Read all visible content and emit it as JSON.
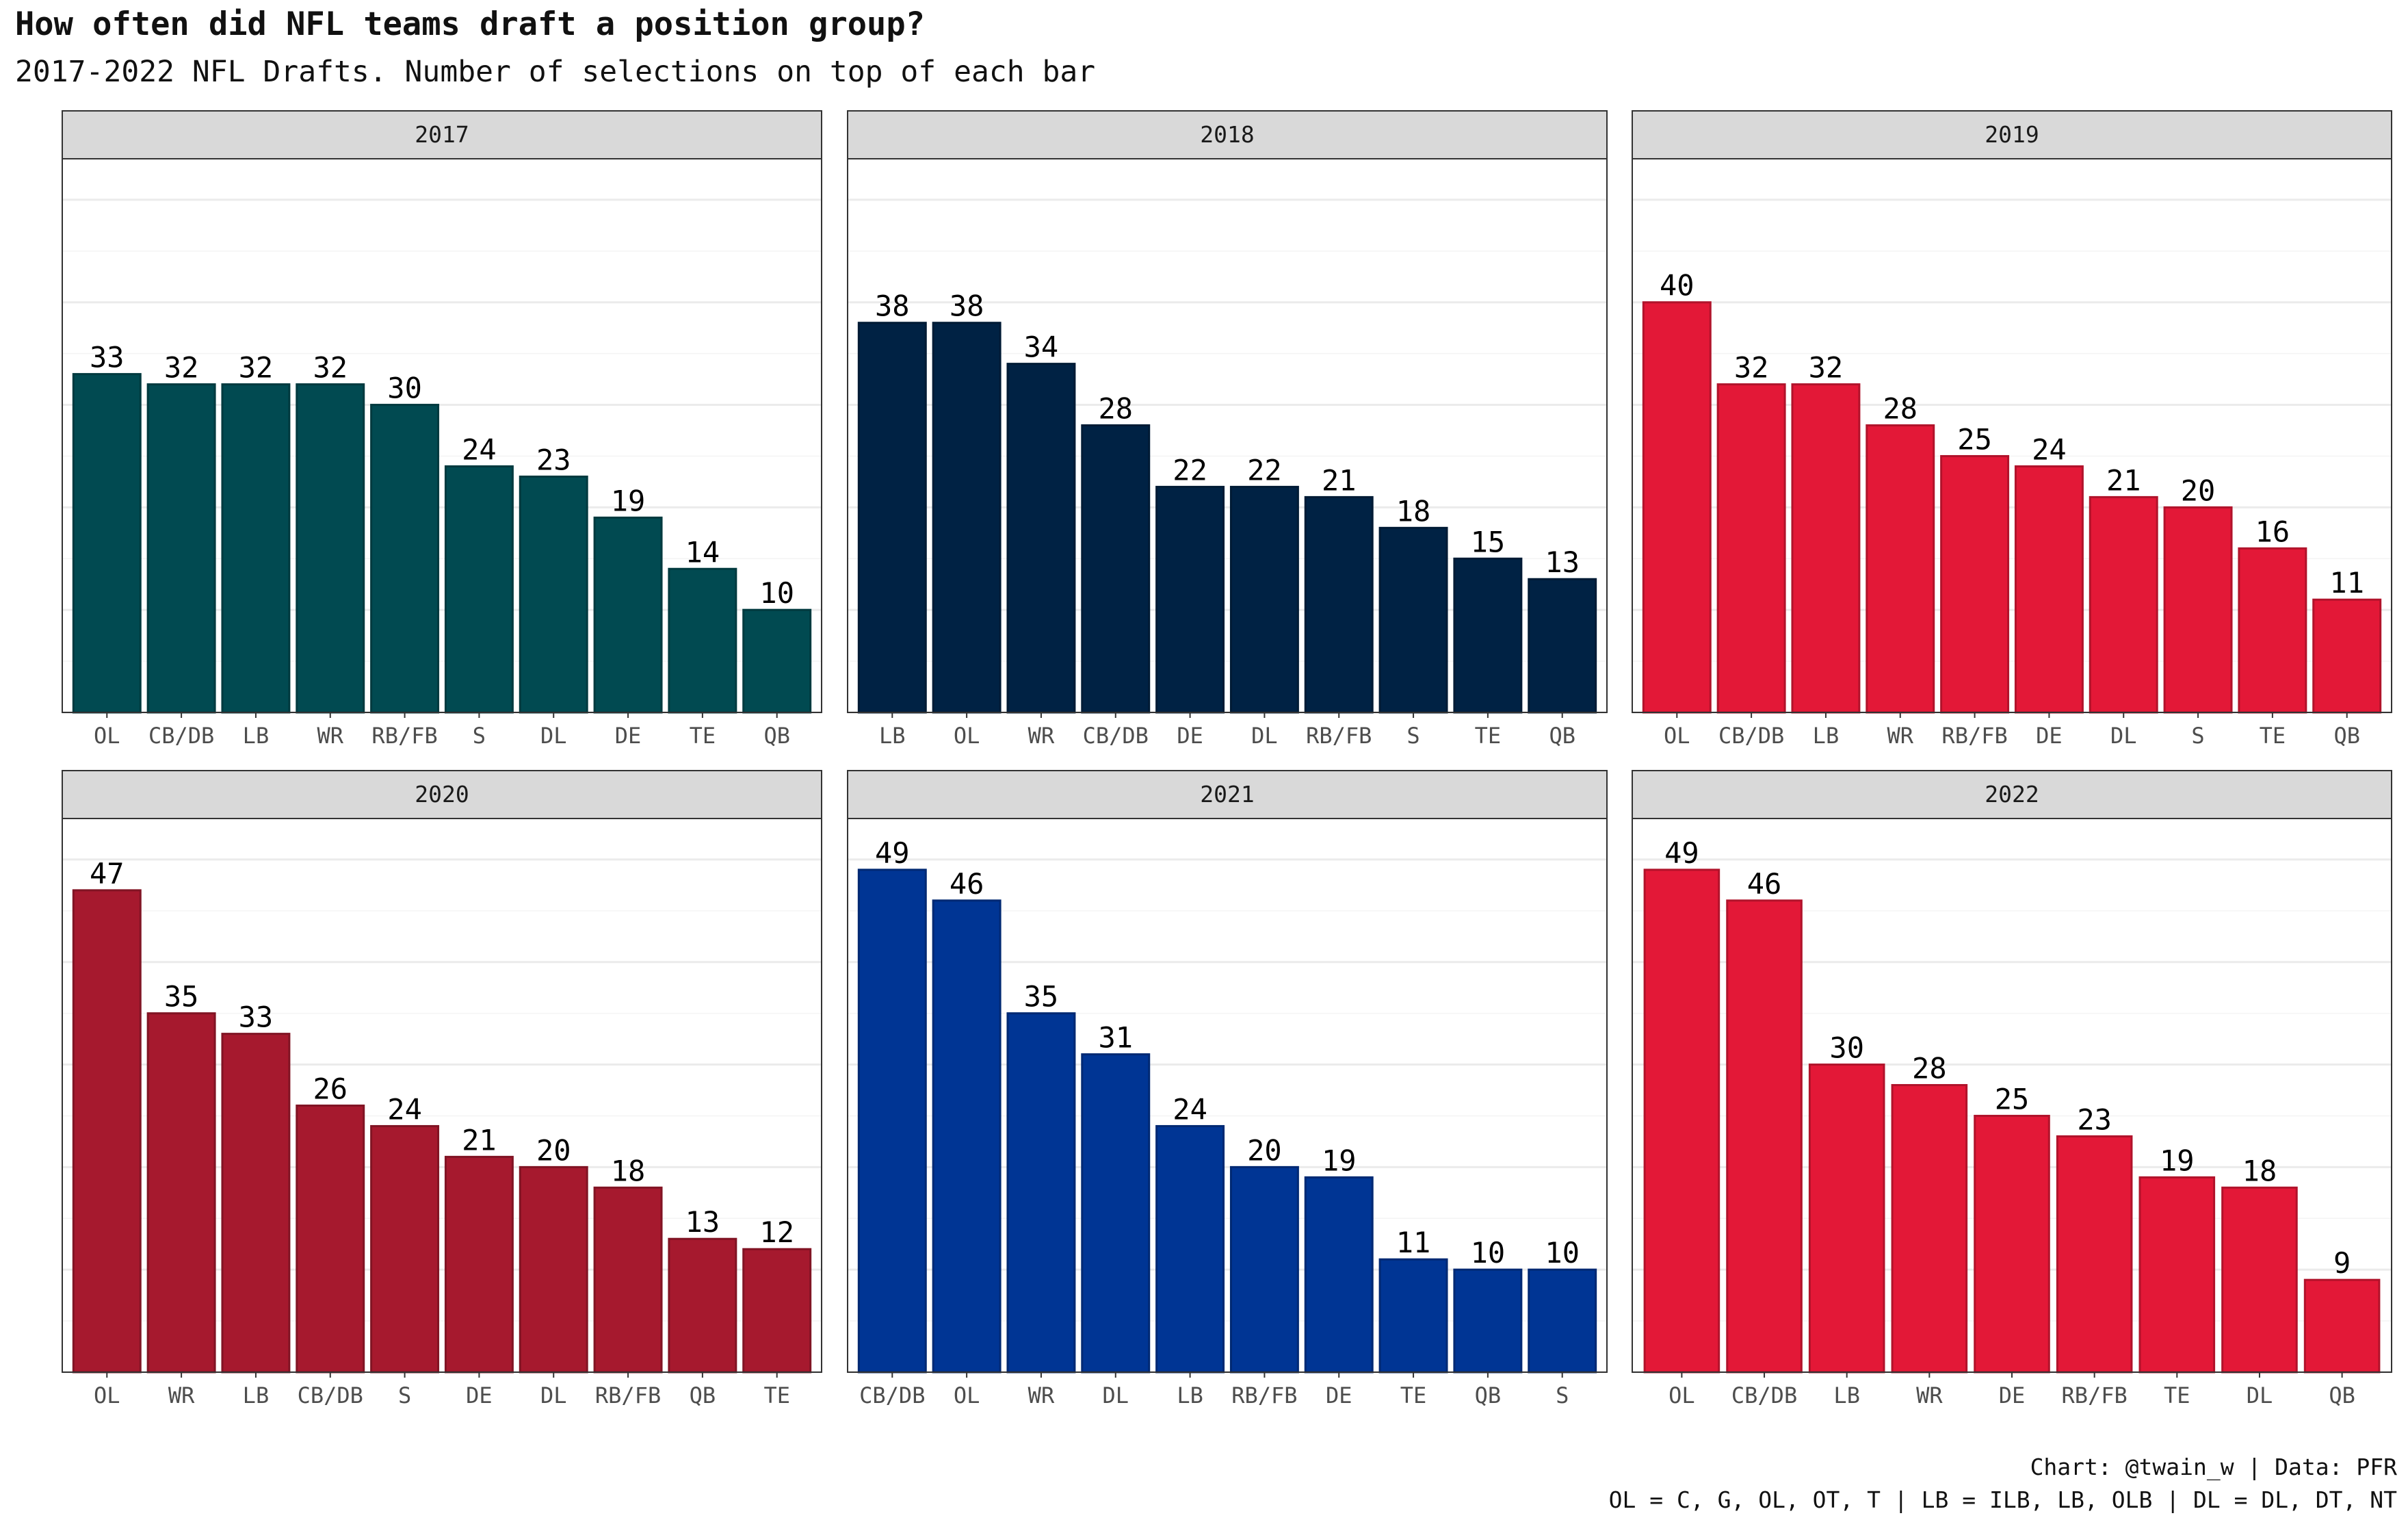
{
  "title": "How often did NFL teams draft a position group?",
  "subtitle": "2017-2022 NFL Drafts. Number of selections on top of each bar",
  "caption": {
    "line1": "Chart: @twain_w | Data: PFR",
    "line2": "OL = C, G, OL, OT, T | LB = ILB, LB, OLB | DL = DL, DT, NT"
  },
  "chart_data": [
    {
      "type": "bar",
      "facet_label": "2017",
      "color": "#014A51",
      "categories": [
        "OL",
        "CB/DB",
        "LB",
        "WR",
        "RB/FB",
        "S",
        "DL",
        "DE",
        "TE",
        "QB"
      ],
      "values": [
        33,
        32,
        32,
        32,
        30,
        24,
        23,
        19,
        14,
        10
      ],
      "ylim": [
        0,
        54
      ],
      "data_labels": true,
      "grid": true
    },
    {
      "type": "bar",
      "facet_label": "2018",
      "color": "#002244",
      "categories": [
        "LB",
        "OL",
        "WR",
        "CB/DB",
        "DE",
        "DL",
        "RB/FB",
        "S",
        "TE",
        "QB"
      ],
      "values": [
        38,
        38,
        34,
        28,
        22,
        22,
        21,
        18,
        15,
        13
      ],
      "ylim": [
        0,
        54
      ],
      "data_labels": true,
      "grid": true
    },
    {
      "type": "bar",
      "facet_label": "2019",
      "color": "#E31837",
      "categories": [
        "OL",
        "CB/DB",
        "LB",
        "WR",
        "RB/FB",
        "DE",
        "DL",
        "S",
        "TE",
        "QB"
      ],
      "values": [
        40,
        32,
        32,
        28,
        25,
        24,
        21,
        20,
        16,
        11
      ],
      "ylim": [
        0,
        54
      ],
      "data_labels": true,
      "grid": true
    },
    {
      "type": "bar",
      "facet_label": "2020",
      "color": "#A6192E",
      "categories": [
        "OL",
        "WR",
        "LB",
        "CB/DB",
        "S",
        "DE",
        "DL",
        "RB/FB",
        "QB",
        "TE"
      ],
      "values": [
        47,
        35,
        33,
        26,
        24,
        21,
        20,
        18,
        13,
        12
      ],
      "ylim": [
        0,
        54
      ],
      "data_labels": true,
      "grid": true
    },
    {
      "type": "bar",
      "facet_label": "2021",
      "color": "#003594",
      "categories": [
        "CB/DB",
        "OL",
        "WR",
        "DL",
        "LB",
        "RB/FB",
        "DE",
        "TE",
        "QB",
        "S"
      ],
      "values": [
        49,
        46,
        35,
        31,
        24,
        20,
        19,
        11,
        10,
        10
      ],
      "ylim": [
        0,
        54
      ],
      "data_labels": true,
      "grid": true
    },
    {
      "type": "bar",
      "facet_label": "2022",
      "color": "#E31837",
      "categories": [
        "OL",
        "CB/DB",
        "LB",
        "WR",
        "DE",
        "RB/FB",
        "TE",
        "DL",
        "QB"
      ],
      "values": [
        49,
        46,
        30,
        28,
        25,
        23,
        19,
        18,
        9
      ],
      "ylim": [
        0,
        54
      ],
      "data_labels": true,
      "grid": true
    }
  ]
}
